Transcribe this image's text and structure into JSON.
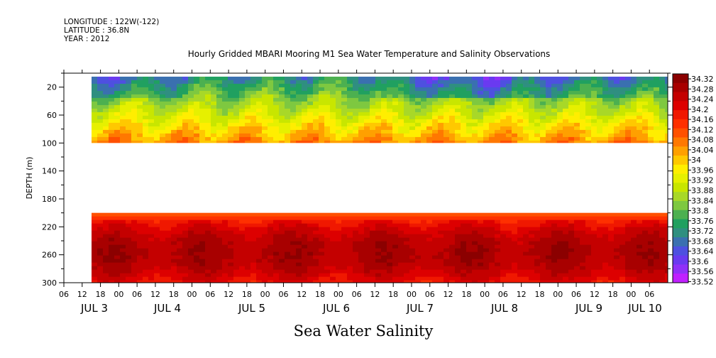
{
  "header": {
    "longitude": "LONGITUDE : 122W(-122)",
    "latitude": "LATITUDE : 36.8N",
    "year": "YEAR : 2012"
  },
  "chart_data": {
    "type": "heatmap",
    "title": "Hourly Gridded MBARI Mooring M1 Sea Water Temperature and Salinity Observations",
    "xlabel": "Sea Water Salinity",
    "ylabel": "DEPTH (m)",
    "x_hour_ticks": [
      "06",
      "12",
      "18",
      "00",
      "06",
      "12",
      "18",
      "00",
      "06",
      "12",
      "18",
      "00",
      "06",
      "12",
      "18",
      "00",
      "06",
      "12",
      "18",
      "00",
      "06",
      "12",
      "18",
      "00",
      "06",
      "12",
      "18",
      "00",
      "06",
      "12",
      "18",
      "00",
      "06"
    ],
    "x_day_labels": [
      "JUL 3",
      "JUL 4",
      "JUL 5",
      "JUL 6",
      "JUL 7",
      "JUL 8",
      "JUL 9",
      "JUL 10"
    ],
    "y_ticks": [
      20,
      60,
      100,
      140,
      180,
      220,
      260,
      300
    ],
    "ylim": [
      300,
      0
    ],
    "colorbar": {
      "labels": [
        "34.32",
        "34.28",
        "34.24",
        "34.2",
        "34.16",
        "34.12",
        "34.08",
        "34.04",
        "34",
        "33.96",
        "33.92",
        "33.88",
        "33.84",
        "33.8",
        "33.76",
        "33.72",
        "33.68",
        "33.64",
        "33.6",
        "33.56",
        "33.52"
      ],
      "colors": [
        "#8b0000",
        "#a80000",
        "#c40000",
        "#dd0000",
        "#f01800",
        "#ff3000",
        "#ff5000",
        "#ff7800",
        "#ffa000",
        "#ffc800",
        "#ffee00",
        "#e6f000",
        "#c8e600",
        "#a8d828",
        "#7ec840",
        "#4cb050",
        "#20a060",
        "#2f8f80",
        "#3a70b0",
        "#4e50e0",
        "#6a3af0",
        "#9030f8",
        "#c020ff"
      ],
      "extremes": [
        "#6a0000",
        "#e040ff"
      ]
    },
    "series": [
      {
        "depth": "0-100",
        "salinity_range": [
          33.62,
          34.06
        ]
      },
      {
        "depth": "200-300",
        "salinity_range": [
          34.14,
          34.3
        ]
      }
    ]
  }
}
